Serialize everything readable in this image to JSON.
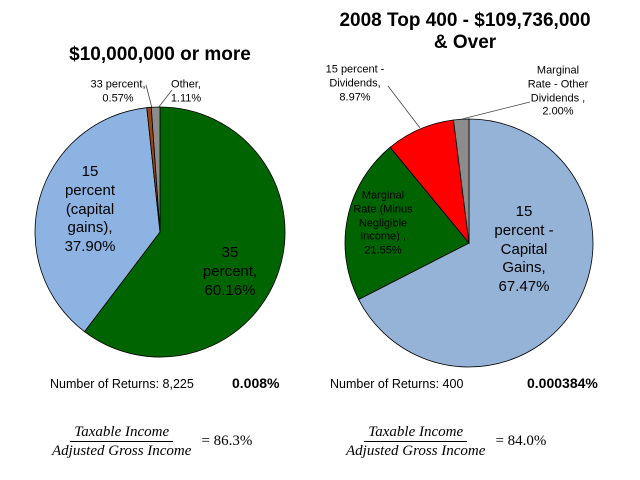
{
  "chart_data": [
    {
      "type": "pie",
      "title": "$10,000,000 or more",
      "slices": [
        {
          "label": "35 percent, 60.16%",
          "lines": [
            "35",
            "percent,",
            "60.16%"
          ],
          "value": 60.16,
          "color": "#006400"
        },
        {
          "label": "15 percent (capital gains), 37.90%",
          "lines": [
            "15",
            "percent",
            "(capital",
            "gains),",
            "37.90%"
          ],
          "value": 37.9,
          "color": "#8db3e2"
        },
        {
          "label": "33 percent, 0.57%",
          "lines": [
            "33 percent,",
            "0.57%"
          ],
          "value": 0.57,
          "color": "#a0440c"
        },
        {
          "label": "Other, 1.11%",
          "lines": [
            "Other,",
            "1.11%"
          ],
          "value": 1.11,
          "color": "#8c8c8c"
        }
      ],
      "returns_label": "Number of Returns: 8,225",
      "share": "0.008%",
      "formula": {
        "numerator": "Taxable Income",
        "denominator": "Adjusted Gross Income",
        "result": "= 86.3%"
      }
    },
    {
      "type": "pie",
      "title": "2008 Top 400 - $109,736,000 & Over",
      "slices": [
        {
          "label": "15 percent - Capital Gains, 67.47%",
          "lines": [
            "15",
            "percent -",
            "Capital",
            "Gains,",
            "67.47%"
          ],
          "value": 67.47,
          "color": "#95b3d7"
        },
        {
          "label": "Marginal Rate (Minus Negligible Income) , 21.55%",
          "lines": [
            "Marginal",
            "Rate (Minus",
            "Negligible",
            "Income) ,",
            "21.55%"
          ],
          "value": 21.55,
          "color": "#006400"
        },
        {
          "label": "15 percent - Dividends, 8.97%",
          "lines": [
            "15 percent -",
            "Dividends,",
            "8.97%"
          ],
          "value": 8.97,
          "color": "#ff0000"
        },
        {
          "label": "Marginal Rate - Other Dividends , 2.00%",
          "lines": [
            "Marginal",
            "Rate - Other",
            "Dividends ,",
            "2.00%"
          ],
          "value": 2.0,
          "color": "#8c8c8c"
        }
      ],
      "returns_label": "Number of Returns: 400",
      "share": "0.000384%",
      "formula": {
        "numerator": "Taxable Income",
        "denominator": "Adjusted Gross Income",
        "result": "= 84.0%"
      }
    }
  ]
}
